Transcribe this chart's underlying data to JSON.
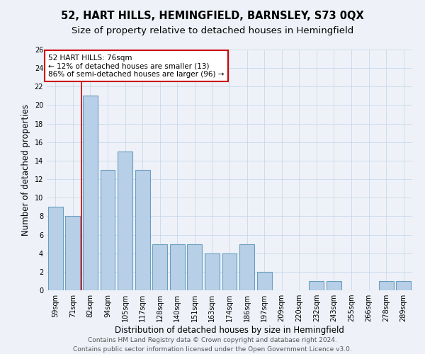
{
  "title": "52, HART HILLS, HEMINGFIELD, BARNSLEY, S73 0QX",
  "subtitle": "Size of property relative to detached houses in Hemingfield",
  "xlabel": "Distribution of detached houses by size in Hemingfield",
  "ylabel": "Number of detached properties",
  "categories": [
    "59sqm",
    "71sqm",
    "82sqm",
    "94sqm",
    "105sqm",
    "117sqm",
    "128sqm",
    "140sqm",
    "151sqm",
    "163sqm",
    "174sqm",
    "186sqm",
    "197sqm",
    "209sqm",
    "220sqm",
    "232sqm",
    "243sqm",
    "255sqm",
    "266sqm",
    "278sqm",
    "289sqm"
  ],
  "values": [
    9,
    8,
    21,
    13,
    15,
    13,
    5,
    5,
    5,
    4,
    4,
    5,
    2,
    0,
    0,
    1,
    1,
    0,
    0,
    1,
    1
  ],
  "bar_color": "#b8cfe8",
  "bar_edge_color": "#6a9ec0",
  "annotation_text": "52 HART HILLS: 76sqm\n← 12% of detached houses are smaller (13)\n86% of semi-detached houses are larger (96) →",
  "annotation_box_color": "#ffffff",
  "annotation_box_edge": "#cc0000",
  "subject_line_color": "#cc0000",
  "ylim": [
    0,
    26
  ],
  "yticks": [
    0,
    2,
    4,
    6,
    8,
    10,
    12,
    14,
    16,
    18,
    20,
    22,
    24,
    26
  ],
  "grid_color": "#c8d8ec",
  "footer": "Contains HM Land Registry data © Crown copyright and database right 2024.\nContains public sector information licensed under the Open Government Licence v3.0.",
  "title_fontsize": 10.5,
  "subtitle_fontsize": 9.5,
  "xlabel_fontsize": 8.5,
  "ylabel_fontsize": 8.5,
  "tick_fontsize": 7,
  "footer_fontsize": 6.5,
  "annotation_fontsize": 7.5,
  "bg_color": "#eef2f8"
}
